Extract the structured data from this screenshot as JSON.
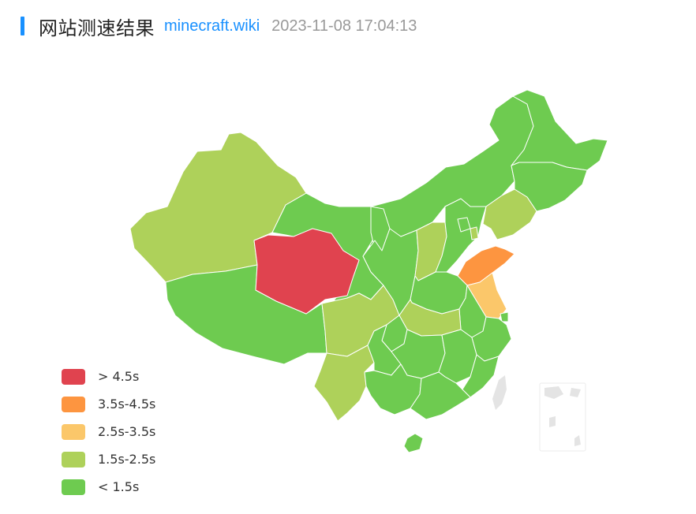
{
  "header": {
    "title": "网站测速结果",
    "site": "minecraft.wiki",
    "timestamp": "2023-11-08 17:04:13"
  },
  "colors": {
    "accent": "#1890ff",
    "link": "#1890ff",
    "timestamp": "#999999",
    "border": "#ffffff",
    "islands": "#e4e4e4"
  },
  "legend": [
    {
      "label": "> 4.5s",
      "color": "#e0434f",
      "tier": "gt45"
    },
    {
      "label": "3.5s-4.5s",
      "color": "#fd9540",
      "tier": "t35"
    },
    {
      "label": "2.5s-3.5s",
      "color": "#fbc76a",
      "tier": "t25"
    },
    {
      "label": "1.5s-2.5s",
      "color": "#aed15a",
      "tier": "t15"
    },
    {
      "label": "< 1.5s",
      "color": "#6ecb50",
      "tier": "lt15"
    }
  ],
  "regions": [
    {
      "name": "新疆",
      "tier": "t15"
    },
    {
      "name": "西藏",
      "tier": "lt15"
    },
    {
      "name": "青海",
      "tier": "gt45"
    },
    {
      "name": "甘肃",
      "tier": "lt15"
    },
    {
      "name": "内蒙古",
      "tier": "lt15"
    },
    {
      "name": "黑龙江",
      "tier": "lt15"
    },
    {
      "name": "吉林",
      "tier": "lt15"
    },
    {
      "name": "辽宁",
      "tier": "t15"
    },
    {
      "name": "山西",
      "tier": "t15"
    },
    {
      "name": "山东",
      "tier": "t35"
    },
    {
      "name": "江苏",
      "tier": "t25"
    },
    {
      "name": "四川",
      "tier": "t15"
    },
    {
      "name": "云南",
      "tier": "t15"
    },
    {
      "name": "湖北",
      "tier": "t15"
    },
    {
      "name": "海南",
      "tier": "lt15"
    },
    {
      "name": "天津",
      "tier": "t15"
    },
    {
      "name": "宁夏",
      "tier": "lt15"
    },
    {
      "name": "陕西",
      "tier": "lt15"
    },
    {
      "name": "河北",
      "tier": "lt15"
    },
    {
      "name": "北京",
      "tier": "lt15"
    },
    {
      "name": "河南",
      "tier": "lt15"
    },
    {
      "name": "安徽",
      "tier": "lt15"
    },
    {
      "name": "上海",
      "tier": "lt15"
    },
    {
      "name": "浙江",
      "tier": "lt15"
    },
    {
      "name": "福建",
      "tier": "lt15"
    },
    {
      "name": "江西",
      "tier": "lt15"
    },
    {
      "name": "湖南",
      "tier": "lt15"
    },
    {
      "name": "重庆",
      "tier": "lt15"
    },
    {
      "name": "贵州",
      "tier": "lt15"
    },
    {
      "name": "广西",
      "tier": "lt15"
    },
    {
      "name": "广东",
      "tier": "lt15"
    }
  ]
}
